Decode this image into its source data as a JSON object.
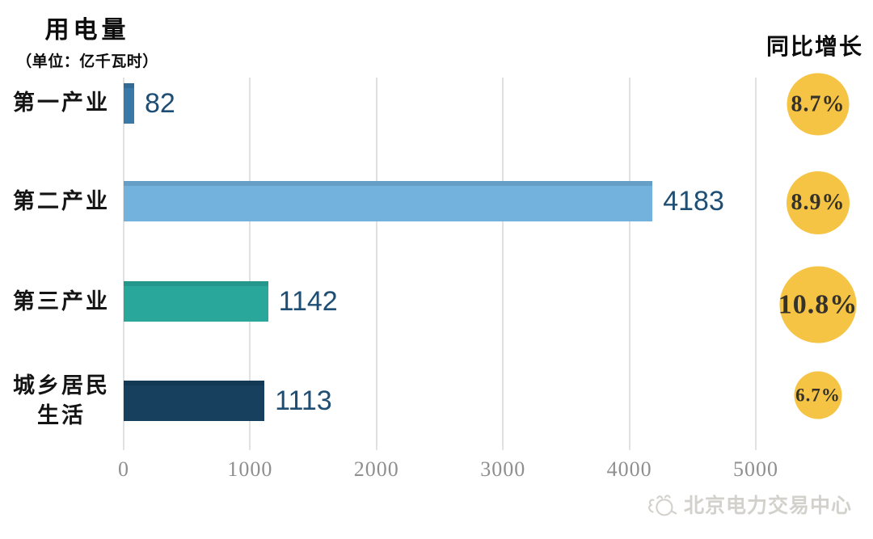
{
  "chart_data": {
    "type": "bar",
    "orientation": "horizontal",
    "title": "用电量",
    "subtitle": "（单位：亿千瓦时）",
    "right_column_header": "同比增长",
    "categories": [
      "第一产业",
      "第二产业",
      "第三产业",
      "城乡居民生活"
    ],
    "values": [
      82,
      4183,
      1142,
      1113
    ],
    "growth_pct": [
      8.7,
      8.9,
      10.8,
      6.7
    ],
    "x_ticks": [
      "0",
      "1000",
      "2000",
      "3000",
      "4000",
      "5000"
    ],
    "xlim": [
      0,
      5000
    ],
    "grid": true,
    "legend_position": "none",
    "bar_colors": [
      "#3a78a8",
      "#72b2dc",
      "#2aa79b",
      "#17405f"
    ],
    "value_text_color": "#1f4e74",
    "circle_color": "#f6c444",
    "rows": [
      {
        "label": "第一产业",
        "value": "82",
        "growth": "8.7%"
      },
      {
        "label": "第二产业",
        "value": "4183",
        "growth": "8.9%"
      },
      {
        "label": "第三产业",
        "value": "1142",
        "growth": "10.8%"
      },
      {
        "label": "城乡居民生活",
        "value": "1113",
        "growth": "6.7%"
      }
    ]
  },
  "watermark": {
    "text": "北京电力交易中心"
  }
}
